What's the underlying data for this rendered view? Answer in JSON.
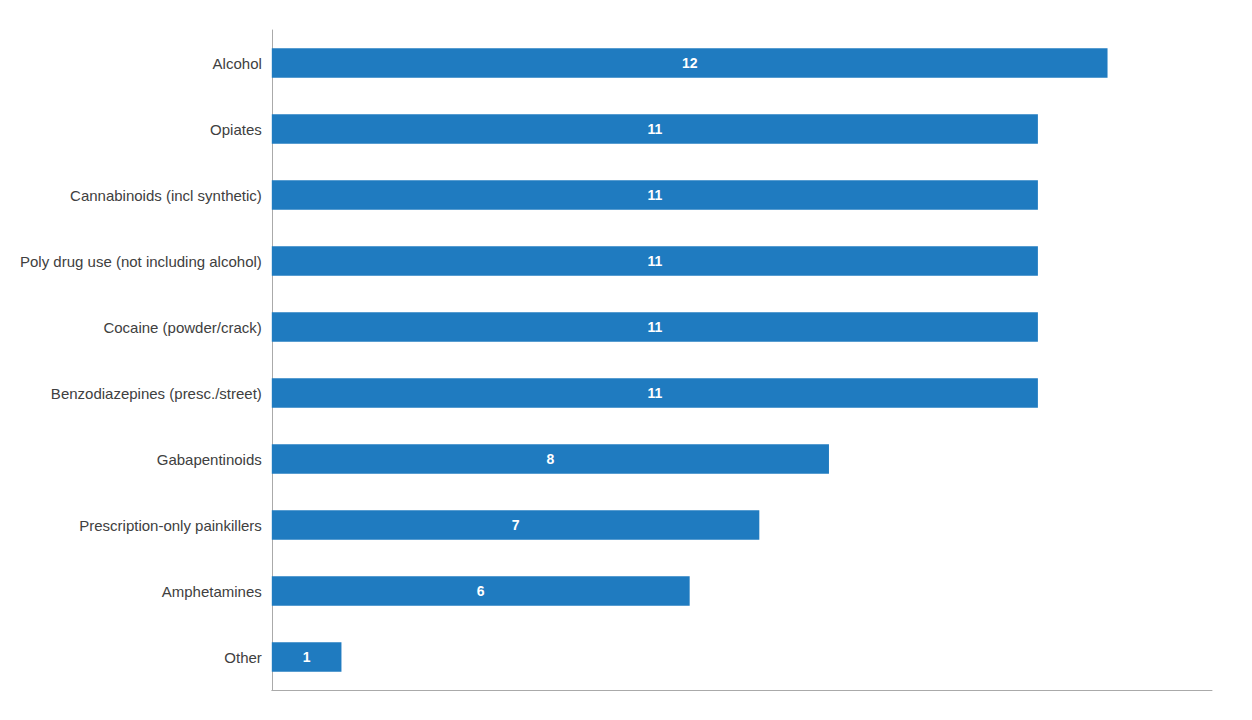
{
  "chart_data": {
    "type": "bar",
    "orientation": "horizontal",
    "categories": [
      "Other",
      "Amphetamines",
      "Prescription-only painkillers",
      "Gabapentinoids",
      "Benzodiazepines (presc./street)",
      "Cocaine (powder/crack)",
      "Poly drug use (not including alcohol)",
      "Cannabinoids (incl synthetic)",
      "Opiates",
      "Alcohol"
    ],
    "values": [
      1,
      6,
      7,
      8,
      11,
      11,
      11,
      11,
      11,
      12
    ],
    "color": "#1F7BC0",
    "xlim": [
      0,
      13.5
    ],
    "grid": false,
    "data_labels": true,
    "tick_labels": "y"
  }
}
